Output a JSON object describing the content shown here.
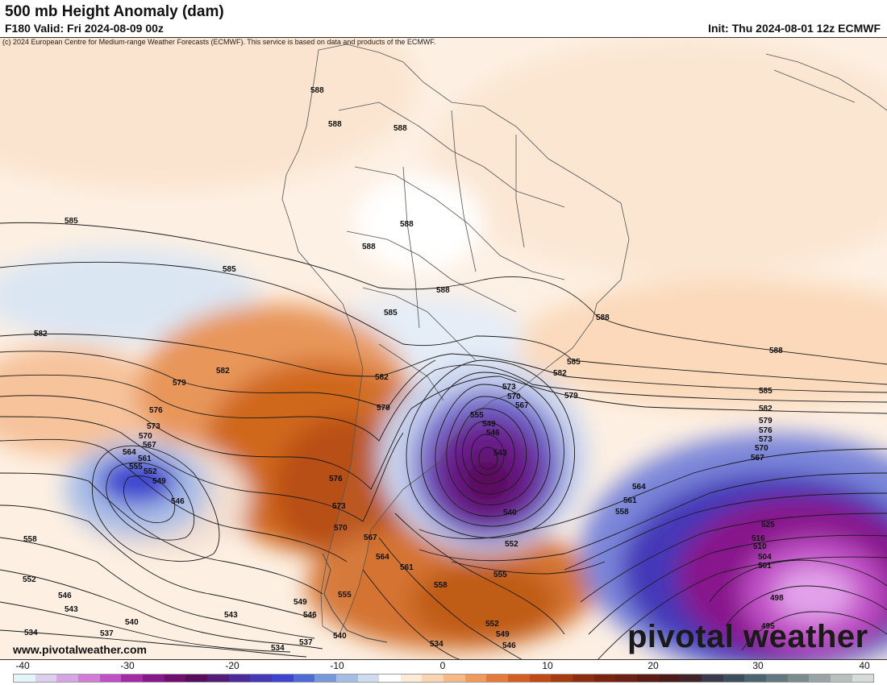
{
  "header": {
    "title": "500 mb Height Anomaly (dam)",
    "valid": "F180 Valid: Fri 2024-08-09 00z",
    "init": "Init: Thu 2024-08-01 12z ECMWF",
    "credit": "(c) 2024 European Centre for Medium-range Weather Forecasts (ECMWF). This service is based on data and products of the ECMWF."
  },
  "footer": {
    "website": "www.pivotalweather.com",
    "brand": "pivotal weather"
  },
  "colorbar": {
    "ticks": [
      "-40",
      "-30",
      "-20",
      "-10",
      "0",
      "10",
      "20",
      "30",
      "40"
    ],
    "colors": [
      "#e4f4fb",
      "#dcd0ee",
      "#d6a6e4",
      "#d27cd8",
      "#c050c6",
      "#a42aa8",
      "#88178c",
      "#6e0f70",
      "#5a0c5c",
      "#531c78",
      "#4d2a99",
      "#4538b8",
      "#3d44cf",
      "#4e6ad6",
      "#7796dc",
      "#a6bde6",
      "#cfdcf0",
      "#ffffff",
      "#fdebd8",
      "#fbd5b0",
      "#f8b987",
      "#f29a5e",
      "#e67a3a",
      "#d55f22",
      "#c04a14",
      "#a83a10",
      "#8e2c10",
      "#7a2410",
      "#6d2013",
      "#5c1c14",
      "#4c1a18",
      "#3f2428",
      "#3a3a4a",
      "#3e4e5e",
      "#4c6470",
      "#62787e",
      "#7c8c8e",
      "#9aa4a4",
      "#b8c0be",
      "#d6dad8"
    ]
  },
  "contour_labels": [
    "588",
    "588",
    "588",
    "588",
    "588",
    "588",
    "588",
    "585",
    "585",
    "585",
    "585",
    "582",
    "582",
    "582",
    "582",
    "579",
    "579",
    "579",
    "576",
    "576",
    "573",
    "573",
    "573",
    "570",
    "570",
    "570",
    "567",
    "567",
    "567",
    "564",
    "564",
    "561",
    "561",
    "555",
    "555",
    "555",
    "552",
    "552",
    "549",
    "549",
    "549",
    "546",
    "546",
    "546",
    "543",
    "543",
    "540",
    "540",
    "537",
    "534",
    "534",
    "558",
    "558",
    "558",
    "525",
    "516",
    "510",
    "504",
    "501",
    "498",
    "495",
    "552",
    "546",
    "564",
    "561",
    "555",
    "552",
    "549",
    "546",
    "543",
    "540",
    "537",
    "534",
    "582",
    "579",
    "576",
    "573",
    "570",
    "567",
    "585",
    "588"
  ]
}
